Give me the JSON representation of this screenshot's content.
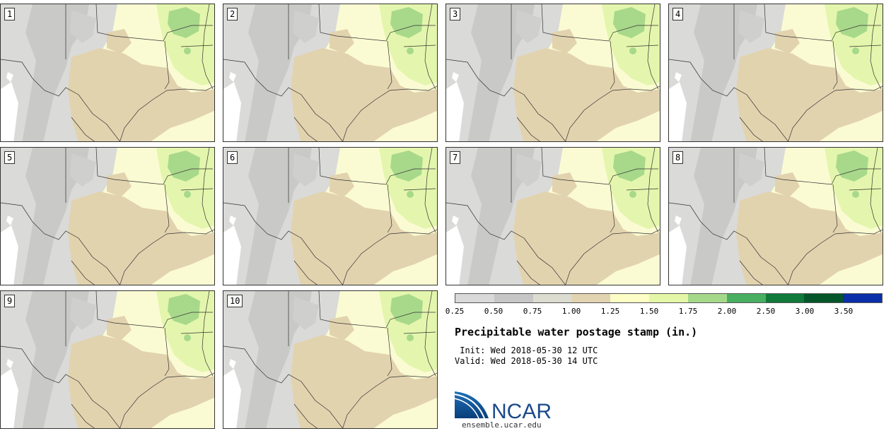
{
  "panels": [
    {
      "label": "1"
    },
    {
      "label": "2"
    },
    {
      "label": "3"
    },
    {
      "label": "4"
    },
    {
      "label": "5"
    },
    {
      "label": "6"
    },
    {
      "label": "7"
    },
    {
      "label": "8"
    },
    {
      "label": "9"
    },
    {
      "label": "10"
    }
  ],
  "colorbar": {
    "colors": [
      "#d9d9d9",
      "#c6c6c6",
      "#dcdcd0",
      "#e2d4b0",
      "#fdfdc6",
      "#e4f7a8",
      "#a5d98a",
      "#48af61",
      "#0f7a3a",
      "#05552a",
      "#0b2fa8"
    ],
    "ticks": [
      "0.25",
      "0.50",
      "0.75",
      "1.00",
      "1.25",
      "1.50",
      "1.75",
      "2.00",
      "2.50",
      "3.00",
      "3.50"
    ]
  },
  "title": "Precipitable water postage stamp (in.)",
  "init_line": " Init: Wed 2018-05-30 12 UTC",
  "valid_line": "Valid: Wed 2018-05-30 14 UTC",
  "logo_text": "NCAR",
  "website": "ensemble.ucar.edu"
}
